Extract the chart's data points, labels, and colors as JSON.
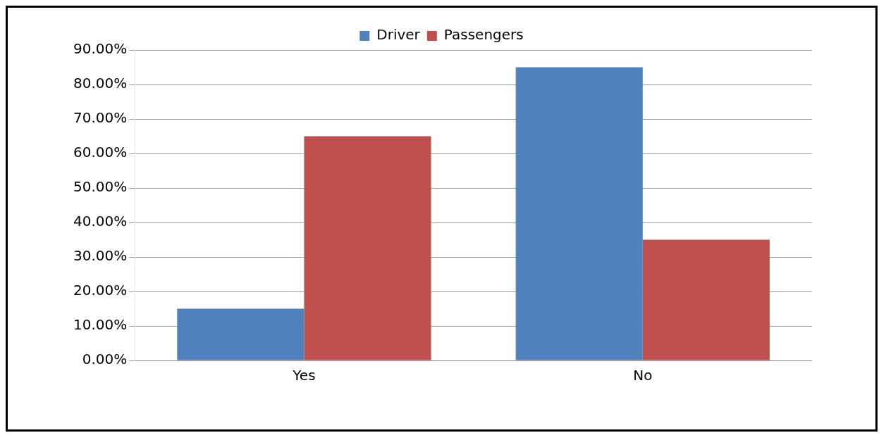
{
  "chart_data": {
    "type": "bar",
    "categories": [
      "Yes",
      "No"
    ],
    "series": [
      {
        "name": "Driver",
        "color": "#4f81bd",
        "values": [
          15,
          85
        ]
      },
      {
        "name": "Passengers",
        "color": "#c0504d",
        "values": [
          65,
          35
        ]
      }
    ],
    "ylim": [
      0,
      90
    ],
    "yticks": [
      {
        "value": 0,
        "label": "0.00%"
      },
      {
        "value": 10,
        "label": "10.00%"
      },
      {
        "value": 20,
        "label": "20.00%"
      },
      {
        "value": 30,
        "label": "30.00%"
      },
      {
        "value": 40,
        "label": "40.00%"
      },
      {
        "value": 50,
        "label": "50.00%"
      },
      {
        "value": 60,
        "label": "60.00%"
      },
      {
        "value": 70,
        "label": "70.00%"
      },
      {
        "value": 80,
        "label": "80.00%"
      },
      {
        "value": 90,
        "label": "90.00%"
      }
    ],
    "grid": "y",
    "legend": "top"
  }
}
